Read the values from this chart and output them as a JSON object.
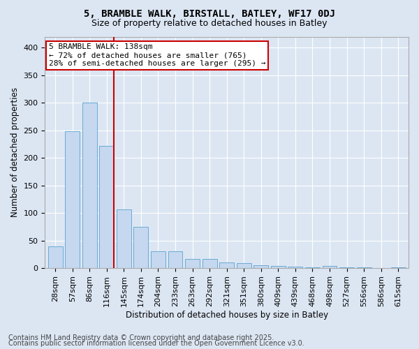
{
  "title_line1": "5, BRAMBLE WALK, BIRSTALL, BATLEY, WF17 0DJ",
  "title_line2": "Size of property relative to detached houses in Batley",
  "xlabel": "Distribution of detached houses by size in Batley",
  "ylabel": "Number of detached properties",
  "categories": [
    "28sqm",
    "57sqm",
    "86sqm",
    "116sqm",
    "145sqm",
    "174sqm",
    "204sqm",
    "233sqm",
    "263sqm",
    "292sqm",
    "321sqm",
    "351sqm",
    "380sqm",
    "409sqm",
    "439sqm",
    "468sqm",
    "498sqm",
    "527sqm",
    "556sqm",
    "586sqm",
    "615sqm"
  ],
  "values": [
    40,
    248,
    300,
    222,
    107,
    75,
    30,
    30,
    17,
    17,
    10,
    9,
    5,
    4,
    3,
    2,
    4,
    1,
    1,
    0,
    2
  ],
  "bar_color": "#c5d8ef",
  "bar_edge_color": "#6aaad4",
  "vline_pos": 3.5,
  "vline_color": "#cc0000",
  "annotation_text": "5 BRAMBLE WALK: 138sqm\n← 72% of detached houses are smaller (765)\n28% of semi-detached houses are larger (295) →",
  "annotation_box_facecolor": "#ffffff",
  "annotation_box_edgecolor": "#cc0000",
  "footer_line1": "Contains HM Land Registry data © Crown copyright and database right 2025.",
  "footer_line2": "Contains public sector information licensed under the Open Government Licence v3.0.",
  "ylim": [
    0,
    420
  ],
  "yticks": [
    0,
    50,
    100,
    150,
    200,
    250,
    300,
    350,
    400
  ],
  "fig_bg_color": "#dce6f3",
  "plot_bg_color": "#dce6f3",
  "title_fontsize": 10,
  "subtitle_fontsize": 9,
  "axis_label_fontsize": 8.5,
  "tick_fontsize": 8,
  "annotation_fontsize": 8,
  "footer_fontsize": 7
}
